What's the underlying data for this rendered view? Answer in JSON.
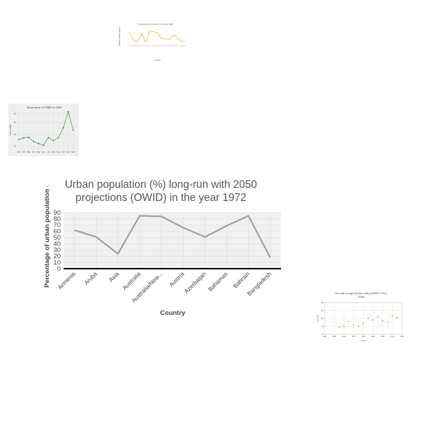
{
  "chart_data": [
    {
      "id": "co2",
      "type": "line",
      "title": "CO₂ Emissions by Entity in the year 1980",
      "xlabel": "Country",
      "ylabel": "Emissions (million tonnes)",
      "categories": [
        "A1",
        "A2",
        "A3",
        "A4",
        "A5",
        "A6",
        "A7",
        "A8",
        "A9",
        "A10",
        "A11",
        "A12",
        "A13",
        "A14",
        "A15"
      ],
      "values": [
        0.34,
        0.12,
        0.1,
        0.3,
        0.09,
        0.37,
        0.35,
        0.31,
        0.18,
        0.17,
        0.14,
        0.27,
        0.2,
        0.1,
        0.11
      ],
      "ylim": [
        0,
        0.45
      ],
      "color": "#e8b62c"
    },
    {
      "id": "stock",
      "type": "line",
      "title": "Stock price of CREE in 2009",
      "xlabel": "",
      "ylabel": "Price (USD)",
      "categories": [
        "Jan",
        "Feb",
        "Mar",
        "Apr",
        "May",
        "Jun",
        "Jul",
        "Aug",
        "Sep",
        "Oct",
        "Nov",
        "Dec"
      ],
      "values": [
        26.2,
        26.8,
        27.0,
        25.6,
        24.9,
        24.3,
        26.9,
        25.9,
        26.8,
        30.2,
        35.6,
        29.4
      ],
      "yticks": [
        24,
        28,
        32,
        35
      ],
      "ylim": [
        23,
        36
      ],
      "color": "#3a9a3a"
    },
    {
      "id": "urban",
      "type": "line",
      "title": "Urban population (%) long-run with 2050 projections (OWID) in the year 1972",
      "title_lines": [
        "Urban population (%) long-run with 2050",
        "projections (OWID) in the year 1972"
      ],
      "xlabel": "Country",
      "ylabel": "Percentage of urban population",
      "categories": [
        "Armenia",
        "Aruba",
        "Asia",
        "Australia",
        "Australia/New...",
        "Austria",
        "Azerbaijan",
        "Bahamas",
        "Bahrain",
        "Bangladesh"
      ],
      "values": [
        62,
        51,
        24,
        85,
        84,
        66,
        51,
        69,
        85,
        18
      ],
      "yticks": [
        0,
        10,
        20,
        30,
        40,
        50,
        60,
        70,
        80,
        90
      ],
      "ylim": [
        0,
        90
      ],
      "color": "#a0a0a0"
    },
    {
      "id": "sexratio",
      "type": "scatter",
      "title": "Sex ratio by age (20 year olds) (UNWPP, 2017)",
      "subtitle": "Aruba",
      "xlabel": "Years",
      "ylabel": "Sex ratio",
      "x": [
        1955,
        1960,
        1965,
        1970,
        1975,
        1980,
        1985,
        1990,
        1995,
        2000,
        2005,
        2010,
        2015
      ],
      "values": [
        89,
        90,
        96,
        92,
        90,
        94,
        100,
        98,
        102,
        97,
        95,
        103,
        101
      ],
      "xticks": [
        1940,
        1950,
        1960,
        1970,
        1980,
        1990,
        2000,
        2010,
        2020
      ],
      "yticks": [
        80,
        90,
        100,
        110,
        120
      ],
      "xlim": [
        1940,
        2020
      ],
      "ylim": [
        80,
        120
      ],
      "color": "#d9a520"
    }
  ]
}
